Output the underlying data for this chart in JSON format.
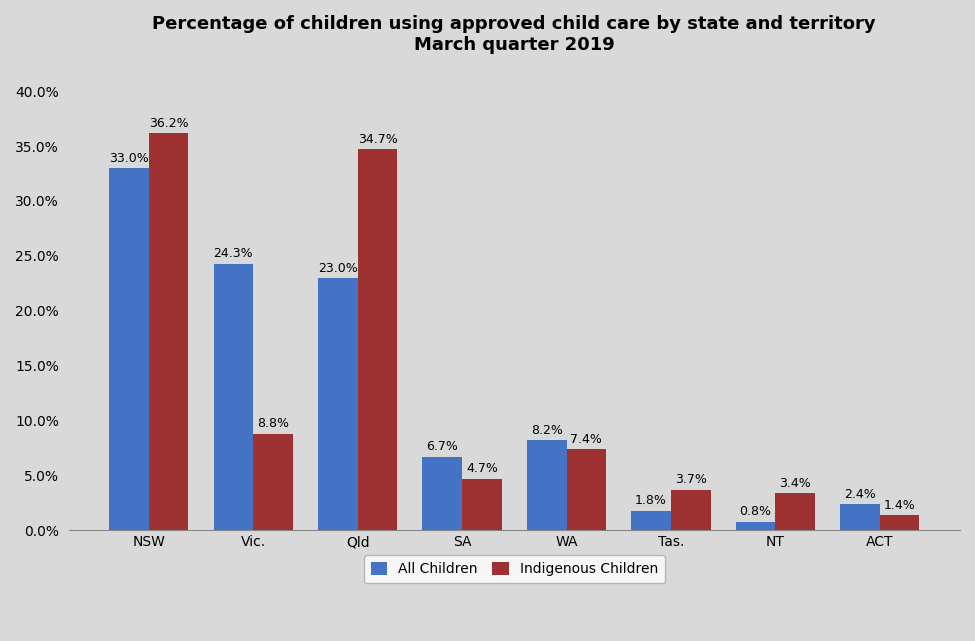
{
  "title": "Percentage of children using approved child care by state and territory\nMarch quarter 2019",
  "categories": [
    "NSW",
    "Vic.",
    "Qld",
    "SA",
    "WA",
    "Tas.",
    "NT",
    "ACT"
  ],
  "all_children": [
    33.0,
    24.3,
    23.0,
    6.7,
    8.2,
    1.8,
    0.8,
    2.4
  ],
  "indigenous_children": [
    36.2,
    8.8,
    34.7,
    4.7,
    7.4,
    3.7,
    3.4,
    1.4
  ],
  "all_children_color": "#4472C4",
  "indigenous_children_color": "#9E3132",
  "background_color": "#D9D9D9",
  "ylim": [
    0,
    42.0
  ],
  "yticks": [
    0.0,
    5.0,
    10.0,
    15.0,
    20.0,
    25.0,
    30.0,
    35.0,
    40.0
  ],
  "legend_labels": [
    "All Children",
    "Indigenous Children"
  ],
  "bar_width": 0.38,
  "title_fontsize": 13,
  "axis_fontsize": 10,
  "label_fontsize": 9
}
